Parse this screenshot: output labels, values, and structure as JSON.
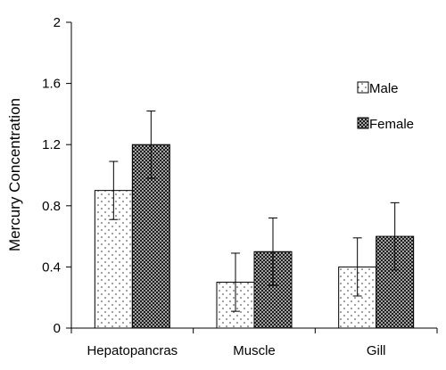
{
  "chart_data": {
    "type": "bar",
    "title": "",
    "xlabel": "",
    "ylabel": "Mercury Concentration",
    "ylim": [
      0,
      2
    ],
    "yticks": [
      0,
      0.4,
      0.8,
      1.2,
      1.6,
      2
    ],
    "ytick_labels": [
      "0",
      "0.4",
      "0.8",
      "1.2",
      "1.6",
      "2"
    ],
    "categories": [
      "Hepatopancras",
      "Muscle",
      "Gill"
    ],
    "series": [
      {
        "name": "Male",
        "values": [
          0.9,
          0.3,
          0.4
        ],
        "errors": [
          0.19,
          0.19,
          0.19
        ],
        "pattern": "dots"
      },
      {
        "name": "Female",
        "values": [
          1.2,
          0.5,
          0.6
        ],
        "errors": [
          0.22,
          0.22,
          0.22
        ],
        "pattern": "crosshatch"
      }
    ],
    "grid": false,
    "legend_position": "upper-right"
  }
}
